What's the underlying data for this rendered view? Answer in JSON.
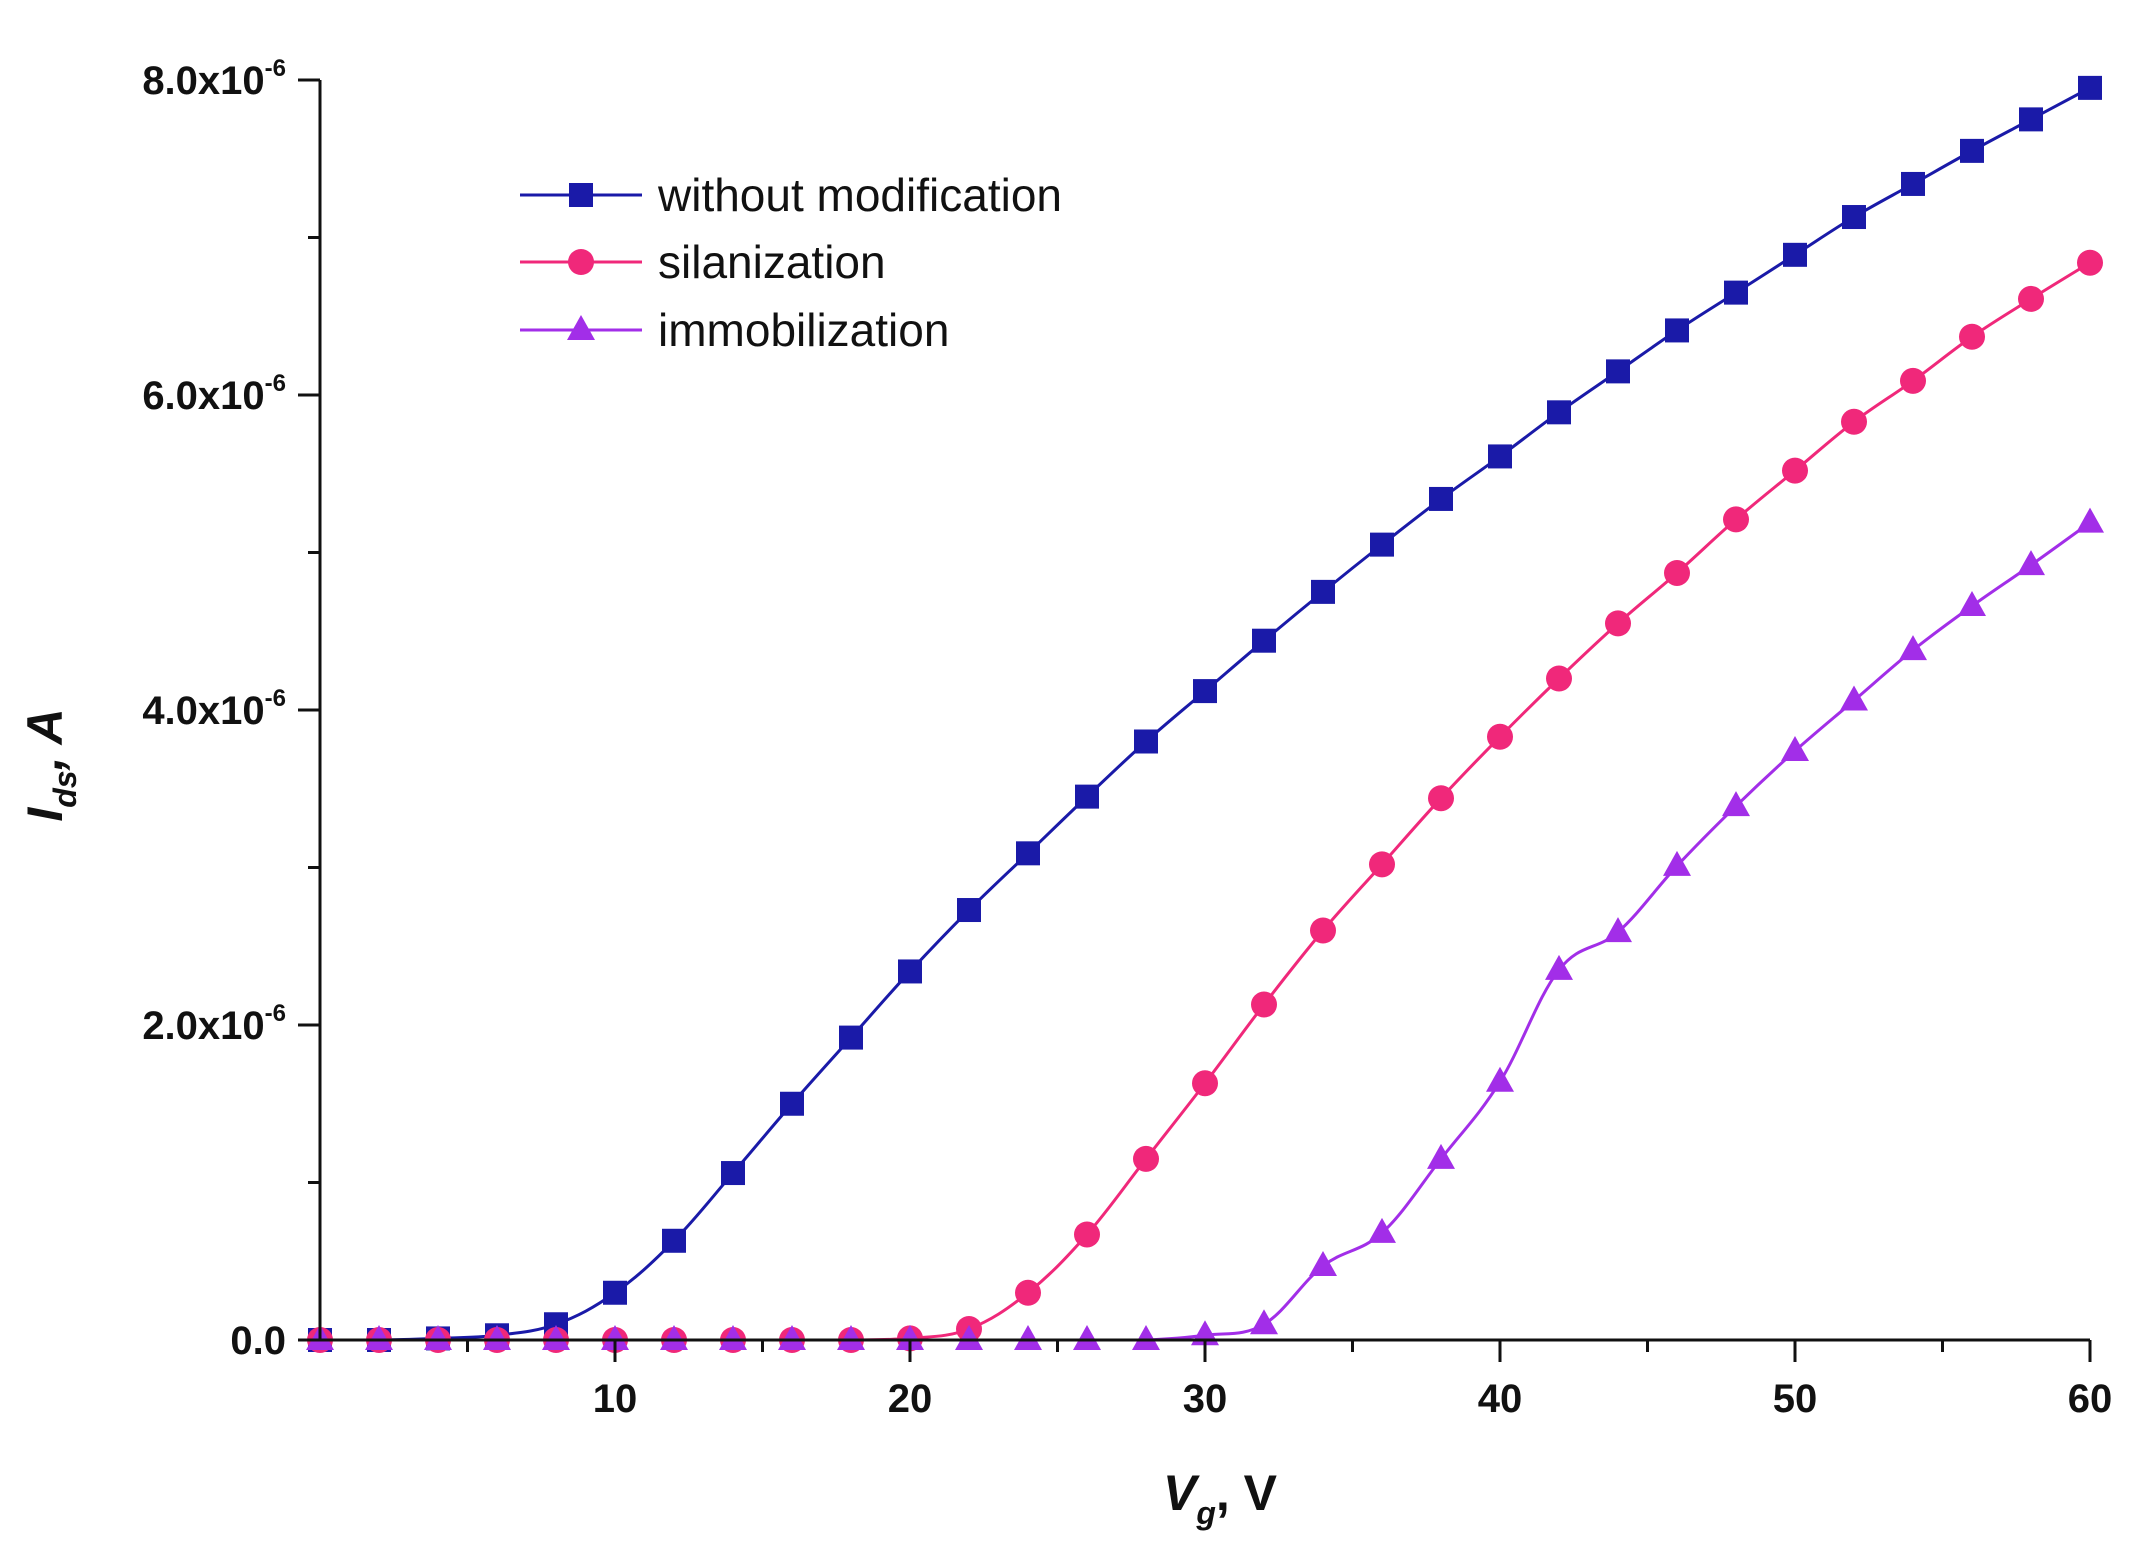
{
  "chart_data": {
    "type": "line",
    "x": [
      0,
      2,
      4,
      6,
      8,
      10,
      12,
      14,
      16,
      18,
      20,
      22,
      24,
      26,
      28,
      30,
      32,
      34,
      36,
      38,
      40,
      42,
      44,
      46,
      48,
      50,
      52,
      54,
      56,
      58,
      60
    ],
    "series": [
      {
        "name": "without modification",
        "color": "#1a1aa8",
        "marker": "square",
        "values": [
          0,
          0,
          1e-08,
          3e-08,
          1e-07,
          3e-07,
          6.3e-07,
          1.06e-06,
          1.5e-06,
          1.92e-06,
          2.34e-06,
          2.73e-06,
          3.09e-06,
          3.45e-06,
          3.8e-06,
          4.12e-06,
          4.44e-06,
          4.75e-06,
          5.05e-06,
          5.34e-06,
          5.61e-06,
          5.89e-06,
          6.15e-06,
          6.41e-06,
          6.65e-06,
          6.89e-06,
          7.13e-06,
          7.34e-06,
          7.55e-06,
          7.75e-06,
          7.95e-06
        ]
      },
      {
        "name": "silanization",
        "color": "#f0287a",
        "marker": "circle",
        "values": [
          0,
          0,
          0,
          0,
          0,
          0,
          0,
          0,
          0,
          0,
          1e-08,
          7e-08,
          3e-07,
          6.7e-07,
          1.15e-06,
          1.63e-06,
          2.13e-06,
          2.6e-06,
          3.02e-06,
          3.44e-06,
          3.83e-06,
          4.2e-06,
          4.55e-06,
          4.87e-06,
          5.21e-06,
          5.52e-06,
          5.83e-06,
          6.09e-06,
          6.37e-06,
          6.61e-06,
          6.84e-06
        ]
      },
      {
        "name": "immobilization",
        "color": "#a22ee8",
        "marker": "triangle",
        "values": [
          0,
          0,
          0,
          0,
          0,
          0,
          0,
          0,
          0,
          0,
          0,
          0,
          0,
          0,
          0,
          3e-08,
          1e-07,
          4.7e-07,
          6.8e-07,
          1.15e-06,
          1.64e-06,
          2.35e-06,
          2.59e-06,
          3.01e-06,
          3.39e-06,
          3.74e-06,
          4.06e-06,
          4.38e-06,
          4.66e-06,
          4.92e-06,
          5.19e-06
        ]
      }
    ],
    "title": "",
    "xlabel": {
      "main": "V",
      "sub": "g",
      "rest": ", V"
    },
    "ylabel": {
      "main": "I",
      "sub": "ds",
      "rest": ", A"
    },
    "xlim": [
      0,
      60
    ],
    "ylim": [
      0,
      8e-06
    ],
    "x_ticks": [
      10,
      20,
      30,
      40,
      50,
      60
    ],
    "x_tick_labels": [
      "10",
      "20",
      "30",
      "40",
      "50",
      "60"
    ],
    "y_ticks": [
      0,
      2e-06,
      4e-06,
      6e-06,
      8e-06
    ],
    "y_tick_labels": [
      {
        "mantissa": "0.0",
        "exponent": ""
      },
      {
        "mantissa": "2.0x10",
        "exponent": "-6"
      },
      {
        "mantissa": "4.0x10",
        "exponent": "-6"
      },
      {
        "mantissa": "6.0x10",
        "exponent": "-6"
      },
      {
        "mantissa": "8.0x10",
        "exponent": "-6"
      }
    ],
    "grid": false,
    "legend_position": "top-left"
  }
}
